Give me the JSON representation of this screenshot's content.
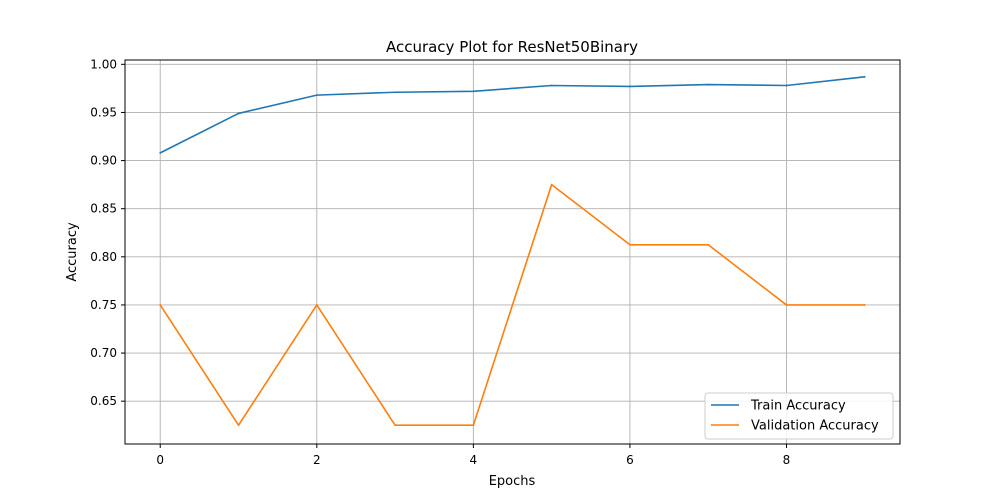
{
  "chart_data": {
    "type": "line",
    "title": "Accuracy Plot for ResNet50Binary",
    "xlabel": "Epochs",
    "ylabel": "Accuracy",
    "x": [
      0,
      1,
      2,
      3,
      4,
      5,
      6,
      7,
      8,
      9
    ],
    "xlim": [
      -0.45,
      9.45
    ],
    "ylim": [
      0.6055,
      1.0045
    ],
    "xticks": [
      0,
      2,
      4,
      6,
      8
    ],
    "xtick_labels": [
      "0",
      "2",
      "4",
      "6",
      "8"
    ],
    "yticks": [
      0.65,
      0.7,
      0.75,
      0.8,
      0.85,
      0.9,
      0.95,
      1.0
    ],
    "ytick_labels": [
      "0.65",
      "0.70",
      "0.75",
      "0.80",
      "0.85",
      "0.90",
      "0.95",
      "1.00"
    ],
    "grid": true,
    "legend_position": "lower-right",
    "series": [
      {
        "name": "Train Accuracy",
        "color": "#1f77b4",
        "values": [
          0.908,
          0.949,
          0.968,
          0.971,
          0.972,
          0.978,
          0.977,
          0.979,
          0.978,
          0.987
        ]
      },
      {
        "name": "Validation Accuracy",
        "color": "#ff7f0e",
        "values": [
          0.75,
          0.625,
          0.75,
          0.625,
          0.625,
          0.875,
          0.8125,
          0.8125,
          0.75,
          0.75
        ]
      }
    ]
  }
}
